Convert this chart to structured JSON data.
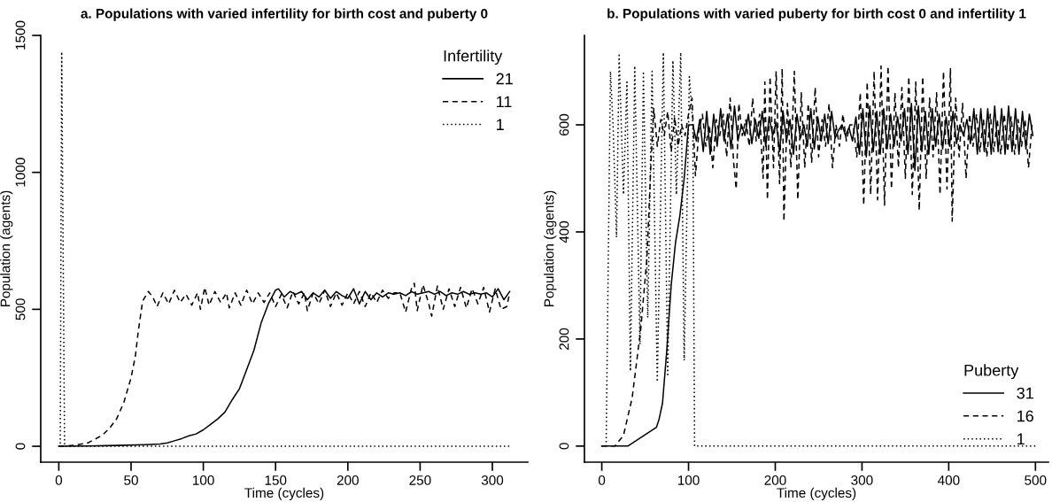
{
  "chart_data": [
    {
      "type": "line",
      "title": "a. Populations with varied infertility for birth cost and puberty 0",
      "xlabel": "Time (cycles)",
      "ylabel": "Population (agents)",
      "legend_title": "Infertility",
      "legend": "top right",
      "grid": false,
      "marker": "none",
      "xlim": [
        -12.5,
        324.5
      ],
      "ylim": [
        -58,
        1500
      ],
      "xticks": [
        0,
        50,
        100,
        150,
        200,
        250,
        300
      ],
      "yticks": [
        0,
        500,
        1000,
        1500
      ],
      "series": [
        {
          "name": "21",
          "color": "#000000",
          "line_style": "solid",
          "x": [
            0,
            20,
            40,
            60,
            70,
            75,
            80,
            85,
            90,
            95,
            100,
            105,
            110,
            115,
            120,
            125,
            130,
            135,
            140,
            145,
            148,
            150,
            152,
            156,
            160,
            164,
            168,
            172,
            176,
            180,
            184,
            188,
            192,
            196,
            200,
            204,
            208,
            212,
            216,
            220,
            224,
            228,
            232,
            236,
            240,
            244,
            248,
            252,
            256,
            260,
            264,
            268,
            272,
            276,
            280,
            284,
            288,
            292,
            296,
            300,
            304,
            308,
            312
          ],
          "values": [
            0,
            1,
            3,
            6,
            8,
            12,
            20,
            28,
            38,
            45,
            60,
            80,
            100,
            125,
            170,
            210,
            280,
            350,
            450,
            520,
            550,
            570,
            575,
            545,
            565,
            555,
            565,
            535,
            560,
            545,
            570,
            540,
            565,
            550,
            540,
            575,
            520,
            565,
            535,
            560,
            545,
            560,
            555,
            560,
            550,
            565,
            555,
            560,
            565,
            555,
            565,
            550,
            560,
            555,
            565,
            555,
            560,
            555,
            560,
            545,
            575,
            535,
            565
          ]
        },
        {
          "name": "11",
          "color": "#000000",
          "line_style": "dashed",
          "x": [
            0,
            10,
            20,
            30,
            35,
            40,
            45,
            50,
            53,
            55,
            58,
            62,
            65,
            68,
            72,
            76,
            80,
            84,
            88,
            92,
            96,
            98,
            101,
            104,
            108,
            112,
            116,
            118,
            122,
            126,
            130,
            134,
            138,
            142,
            146,
            150,
            154,
            158,
            162,
            166,
            170,
            172,
            176,
            180,
            184,
            188,
            192,
            196,
            200,
            204,
            208,
            212,
            216,
            220,
            224,
            228,
            232,
            236,
            240,
            244,
            246,
            248,
            252,
            256,
            258,
            262,
            266,
            270,
            274,
            278,
            282,
            286,
            290,
            294,
            298,
            302,
            306,
            310,
            312
          ],
          "values": [
            0,
            3,
            12,
            40,
            65,
            100,
            160,
            250,
            330,
            420,
            530,
            565,
            545,
            510,
            560,
            520,
            570,
            525,
            555,
            515,
            560,
            500,
            580,
            515,
            565,
            525,
            560,
            505,
            560,
            515,
            570,
            520,
            560,
            525,
            560,
            510,
            555,
            505,
            565,
            520,
            560,
            495,
            560,
            520,
            570,
            510,
            560,
            515,
            560,
            520,
            565,
            510,
            560,
            525,
            570,
            540,
            560,
            560,
            490,
            575,
            595,
            495,
            590,
            520,
            475,
            585,
            500,
            575,
            510,
            580,
            505,
            575,
            520,
            580,
            490,
            575,
            500,
            510,
            560
          ]
        },
        {
          "name": "1",
          "color": "#000000",
          "line_style": "dotted",
          "x": [
            0,
            1,
            2,
            4,
            100,
            200,
            312
          ],
          "values": [
            0,
            0,
            1440,
            0,
            0,
            0,
            0
          ]
        }
      ]
    },
    {
      "type": "line",
      "title": "b. Populations with varied puberty for birth cost 0 and infertility 1",
      "xlabel": "Time (cycles)",
      "ylabel": "Population (agents)",
      "legend_title": "Puberty",
      "legend": "bottom right",
      "grid": false,
      "marker": "none",
      "xlim": [
        -20,
        515
      ],
      "ylim": [
        -30,
        767
      ],
      "xticks": [
        0,
        100,
        200,
        300,
        400,
        500
      ],
      "yticks": [
        0,
        200,
        400,
        600
      ],
      "series": [
        {
          "name": "31",
          "color": "#000000",
          "line_style": "solid",
          "x": [
            0,
            30,
            63,
            66,
            70,
            75,
            80,
            85,
            90,
            95,
            100,
            105,
            109,
            113,
            117,
            121,
            125,
            129,
            133,
            137,
            141,
            145,
            149,
            153,
            157,
            161,
            165,
            169,
            173,
            177,
            181,
            185,
            189,
            193,
            197,
            201,
            205,
            209,
            213,
            217,
            221,
            225,
            229,
            233,
            237,
            241,
            245,
            249,
            253,
            257,
            261,
            265,
            269,
            273,
            277,
            281,
            285,
            289,
            293,
            297,
            301,
            305,
            309,
            313,
            317,
            321,
            325,
            329,
            333,
            337,
            341,
            345,
            349,
            353,
            357,
            361,
            365,
            369,
            373,
            377,
            381,
            385,
            389,
            393,
            397,
            401,
            405,
            409,
            413,
            417,
            421,
            425,
            429,
            433,
            437,
            441,
            445,
            449,
            453,
            457,
            461,
            465,
            469,
            473,
            477,
            481,
            485,
            489,
            493,
            497
          ],
          "values": [
            0,
            0,
            35,
            50,
            80,
            180,
            300,
            380,
            430,
            500,
            600,
            600,
            570,
            610,
            550,
            625,
            545,
            620,
            560,
            630,
            570,
            620,
            555,
            635,
            570,
            600,
            580,
            620,
            565,
            610,
            575,
            625,
            560,
            615,
            580,
            605,
            550,
            625,
            570,
            610,
            545,
            620,
            575,
            600,
            560,
            630,
            555,
            615,
            570,
            620,
            565,
            625,
            575,
            590,
            600,
            580,
            595,
            570,
            615,
            545,
            630,
            540,
            635,
            550,
            625,
            545,
            630,
            555,
            620,
            560,
            615,
            570,
            630,
            545,
            640,
            515,
            635,
            550,
            625,
            545,
            630,
            560,
            620,
            555,
            615,
            560,
            625,
            565,
            600,
            580,
            610,
            565,
            630,
            545,
            630,
            550,
            630,
            545,
            635,
            550,
            630,
            545,
            635,
            550,
            630,
            545,
            625,
            555,
            620,
            580
          ]
        },
        {
          "name": "16",
          "color": "#000000",
          "line_style": "dashed",
          "x": [
            0,
            15,
            25,
            35,
            45,
            52,
            57,
            60,
            64,
            68,
            72,
            76,
            80,
            84,
            88,
            92,
            96,
            100,
            104,
            108,
            112,
            116,
            120,
            124,
            128,
            132,
            136,
            140,
            144,
            148,
            152,
            155,
            158,
            162,
            166,
            170,
            174,
            178,
            182,
            186,
            188,
            191,
            194,
            198,
            201,
            205,
            208,
            210,
            214,
            218,
            222,
            226,
            230,
            234,
            238,
            242,
            246,
            250,
            254,
            258,
            262,
            266,
            270,
            274,
            278,
            282,
            286,
            290,
            294,
            298,
            302,
            306,
            310,
            314,
            318,
            322,
            326,
            330,
            334,
            338,
            342,
            346,
            350,
            354,
            358,
            362,
            366,
            370,
            374,
            378,
            382,
            386,
            390,
            394,
            398,
            402,
            404,
            408,
            412,
            416,
            420,
            424,
            428,
            432,
            436,
            440,
            444,
            448,
            452,
            456,
            460,
            464,
            468,
            472,
            476,
            480,
            484,
            488,
            492,
            496
          ],
          "values": [
            0,
            0,
            20,
            90,
            220,
            350,
            540,
            630,
            560,
            610,
            580,
            625,
            550,
            615,
            560,
            600,
            580,
            620,
            650,
            505,
            590,
            620,
            560,
            600,
            520,
            610,
            580,
            620,
            540,
            650,
            530,
            480,
            640,
            580,
            610,
            560,
            650,
            570,
            620,
            500,
            680,
            460,
            690,
            520,
            700,
            490,
            705,
            420,
            640,
            520,
            700,
            460,
            660,
            520,
            640,
            530,
            670,
            540,
            610,
            560,
            640,
            520,
            600,
            560,
            620,
            570,
            600,
            600,
            540,
            660,
            450,
            680,
            470,
            700,
            460,
            710,
            450,
            710,
            480,
            660,
            520,
            670,
            500,
            690,
            470,
            680,
            440,
            690,
            500,
            650,
            540,
            660,
            470,
            700,
            480,
            705,
            420,
            650,
            540,
            640,
            500,
            620,
            560,
            620,
            550,
            610,
            540,
            620,
            550,
            610,
            545,
            620,
            550,
            615,
            545,
            610,
            560,
            610,
            520,
            600
          ]
        },
        {
          "name": "1",
          "color": "#000000",
          "line_style": "dotted",
          "x": [
            0,
            5,
            10,
            13,
            17,
            20,
            25,
            29,
            33,
            38,
            44,
            48,
            53,
            58,
            64,
            71,
            76,
            82,
            86,
            91,
            95,
            101,
            105,
            107,
            200,
            300,
            400,
            500
          ],
          "values": [
            0,
            0,
            700,
            600,
            390,
            730,
            470,
            680,
            140,
            710,
            190,
            700,
            240,
            700,
            120,
            735,
            130,
            720,
            470,
            735,
            160,
            690,
            600,
            0,
            0,
            0,
            0,
            0
          ]
        }
      ]
    }
  ]
}
